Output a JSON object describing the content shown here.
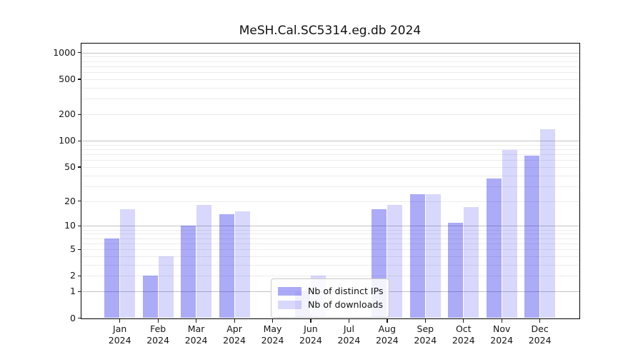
{
  "title": "MeSH.Cal.SC5314.eg.db 2024",
  "chart_data": {
    "type": "bar",
    "title": "MeSH.Cal.SC5314.eg.db 2024",
    "categories": [
      "Jan",
      "Feb",
      "Mar",
      "Apr",
      "May",
      "Jun",
      "Jul",
      "Aug",
      "Sep",
      "Oct",
      "Nov",
      "Dec"
    ],
    "year": "2024",
    "series": [
      {
        "name": "Nb of distinct IPs",
        "color": "rgba(2,2,235,0.335)",
        "values": [
          7,
          2,
          10,
          14,
          0,
          1,
          0,
          16,
          24,
          11,
          37,
          68
        ]
      },
      {
        "name": "Nb of downloads",
        "color": "rgba(2,2,235,0.152)",
        "values": [
          16,
          4,
          18,
          15,
          0,
          2,
          0,
          18,
          24,
          17,
          78,
          135
        ]
      }
    ],
    "xlabel": "",
    "ylabel": "",
    "y_axis": {
      "scale": "log10(1+x)",
      "ylim": [
        0,
        1200
      ],
      "ticks": [
        0,
        1,
        2,
        5,
        10,
        20,
        50,
        100,
        200,
        500,
        1000
      ],
      "major_gridlines": [
        1,
        10,
        100,
        1000
      ],
      "minor_gridlines": [
        2,
        3,
        4,
        5,
        6,
        7,
        8,
        9,
        20,
        30,
        40,
        50,
        60,
        70,
        80,
        90,
        200,
        300,
        400,
        500,
        600,
        700,
        800,
        900
      ]
    },
    "grid": true,
    "legend_position": "bottom-center",
    "colors": {
      "major_grid": "#c3c3c3",
      "minor_grid": "#ececec",
      "axis": "#000000"
    }
  }
}
